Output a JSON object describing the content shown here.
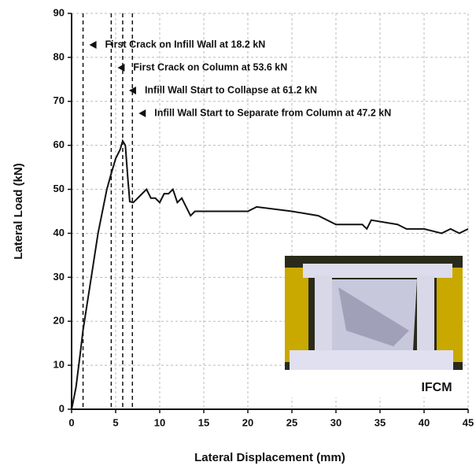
{
  "chart_data": {
    "type": "line",
    "x_label": "Lateral Displacement (mm)",
    "y_label": "Lateral Load (kN)",
    "xlim": [
      0,
      45
    ],
    "ylim": [
      0,
      90
    ],
    "xticks": [
      0,
      5,
      10,
      15,
      20,
      25,
      30,
      35,
      40,
      45
    ],
    "yticks": [
      0,
      10,
      20,
      30,
      40,
      50,
      60,
      70,
      80,
      90
    ],
    "grid": true,
    "x": [
      0,
      0.5,
      1,
      1.3,
      2,
      3,
      4,
      4.5,
      5,
      5.5,
      5.8,
      6.1,
      6.4,
      6.6,
      7,
      7.5,
      8,
      8.5,
      9,
      9.5,
      10,
      10.5,
      11,
      11.5,
      12,
      12.5,
      13,
      13.5,
      14,
      20,
      21,
      25,
      28,
      30,
      33,
      33.5,
      34,
      37,
      38,
      40,
      42,
      43,
      44,
      45
    ],
    "series": [
      {
        "color": "#111111",
        "values": [
          0,
          5,
          13,
          18,
          27,
          40,
          50,
          53.6,
          57,
          59,
          61,
          60,
          52,
          47.2,
          47,
          48,
          49,
          50,
          48,
          48,
          47,
          49,
          49,
          50,
          47,
          48,
          46,
          44,
          45,
          45,
          46,
          45,
          44,
          42,
          42,
          41,
          43,
          42,
          41,
          41,
          40,
          41,
          40,
          41
        ]
      }
    ],
    "annotations": [
      {
        "text": "First Crack on Infill Wall at 18.2 kN",
        "x": 1.3
      },
      {
        "text": "First Crack on Column at 53.6 kN",
        "x": 4.5
      },
      {
        "text": "Infill Wall Start to Collapse at 61.2 kN",
        "x": 5.8
      },
      {
        "text": "Infill Wall Start to Separate from Column at 47.2 kN",
        "x": 6.9
      }
    ],
    "inset_label": "IFCM"
  }
}
